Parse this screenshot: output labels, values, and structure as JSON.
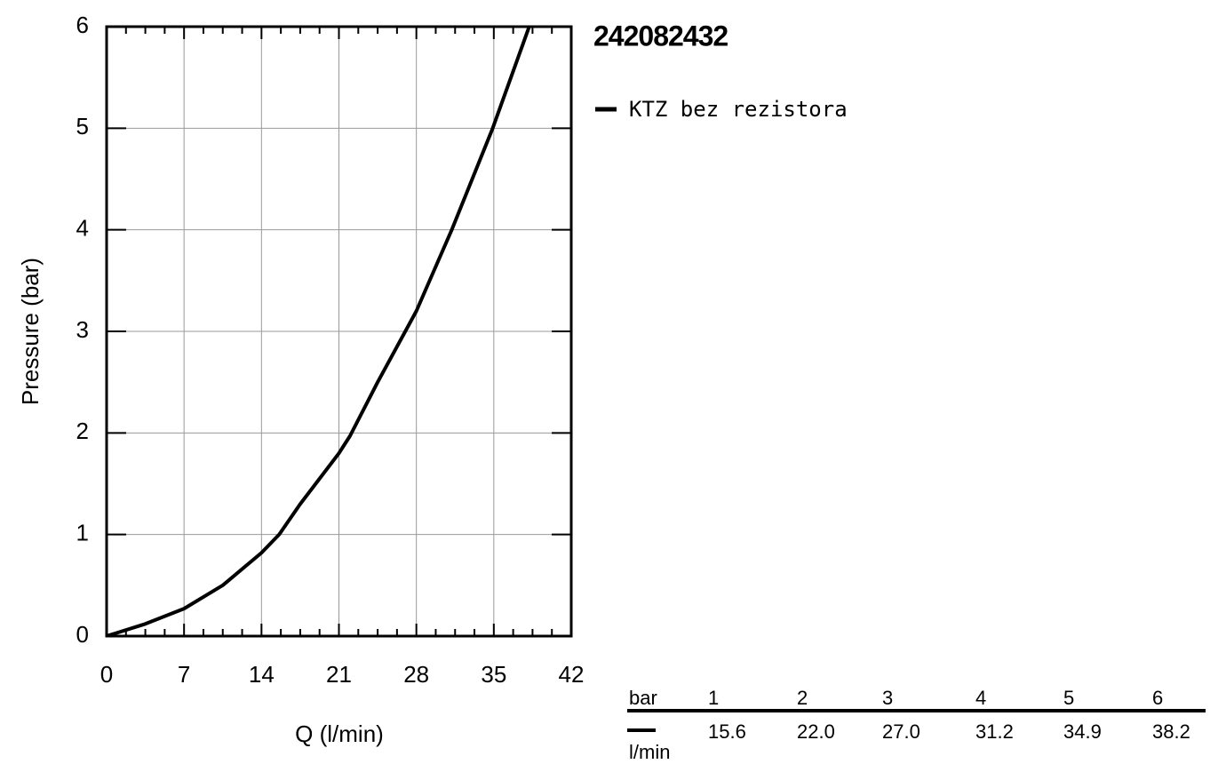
{
  "chart_data": {
    "type": "line",
    "title": "242082432",
    "x_label": "Q (l/min)",
    "y_label": "Pressure (bar)",
    "x": [
      0,
      3.5,
      7,
      10.5,
      14,
      15.6,
      17.5,
      21,
      22.0,
      24.5,
      27.0,
      28,
      31.2,
      34.9,
      38.2
    ],
    "series": [
      {
        "name": "KTZ bez rezistora",
        "color": "#000000",
        "values": [
          0,
          0.12,
          0.27,
          0.5,
          0.82,
          1,
          1.3,
          1.8,
          1.97,
          2.5,
          3,
          3.2,
          4,
          5,
          6
        ]
      }
    ],
    "xlim": [
      0,
      42
    ],
    "xticks": [
      0,
      7,
      14,
      21,
      28,
      35,
      42
    ],
    "ylim": [
      0,
      6
    ],
    "yticks": [
      0,
      1,
      2,
      3,
      4,
      5,
      6
    ],
    "grid": true
  },
  "table": {
    "row_header": "bar",
    "pressures": [
      1,
      2,
      3,
      4,
      5,
      6
    ],
    "unit": "l/min",
    "flows": [
      "15.6",
      "22.0",
      "27.0",
      "31.2",
      "34.9",
      "38.2"
    ]
  }
}
